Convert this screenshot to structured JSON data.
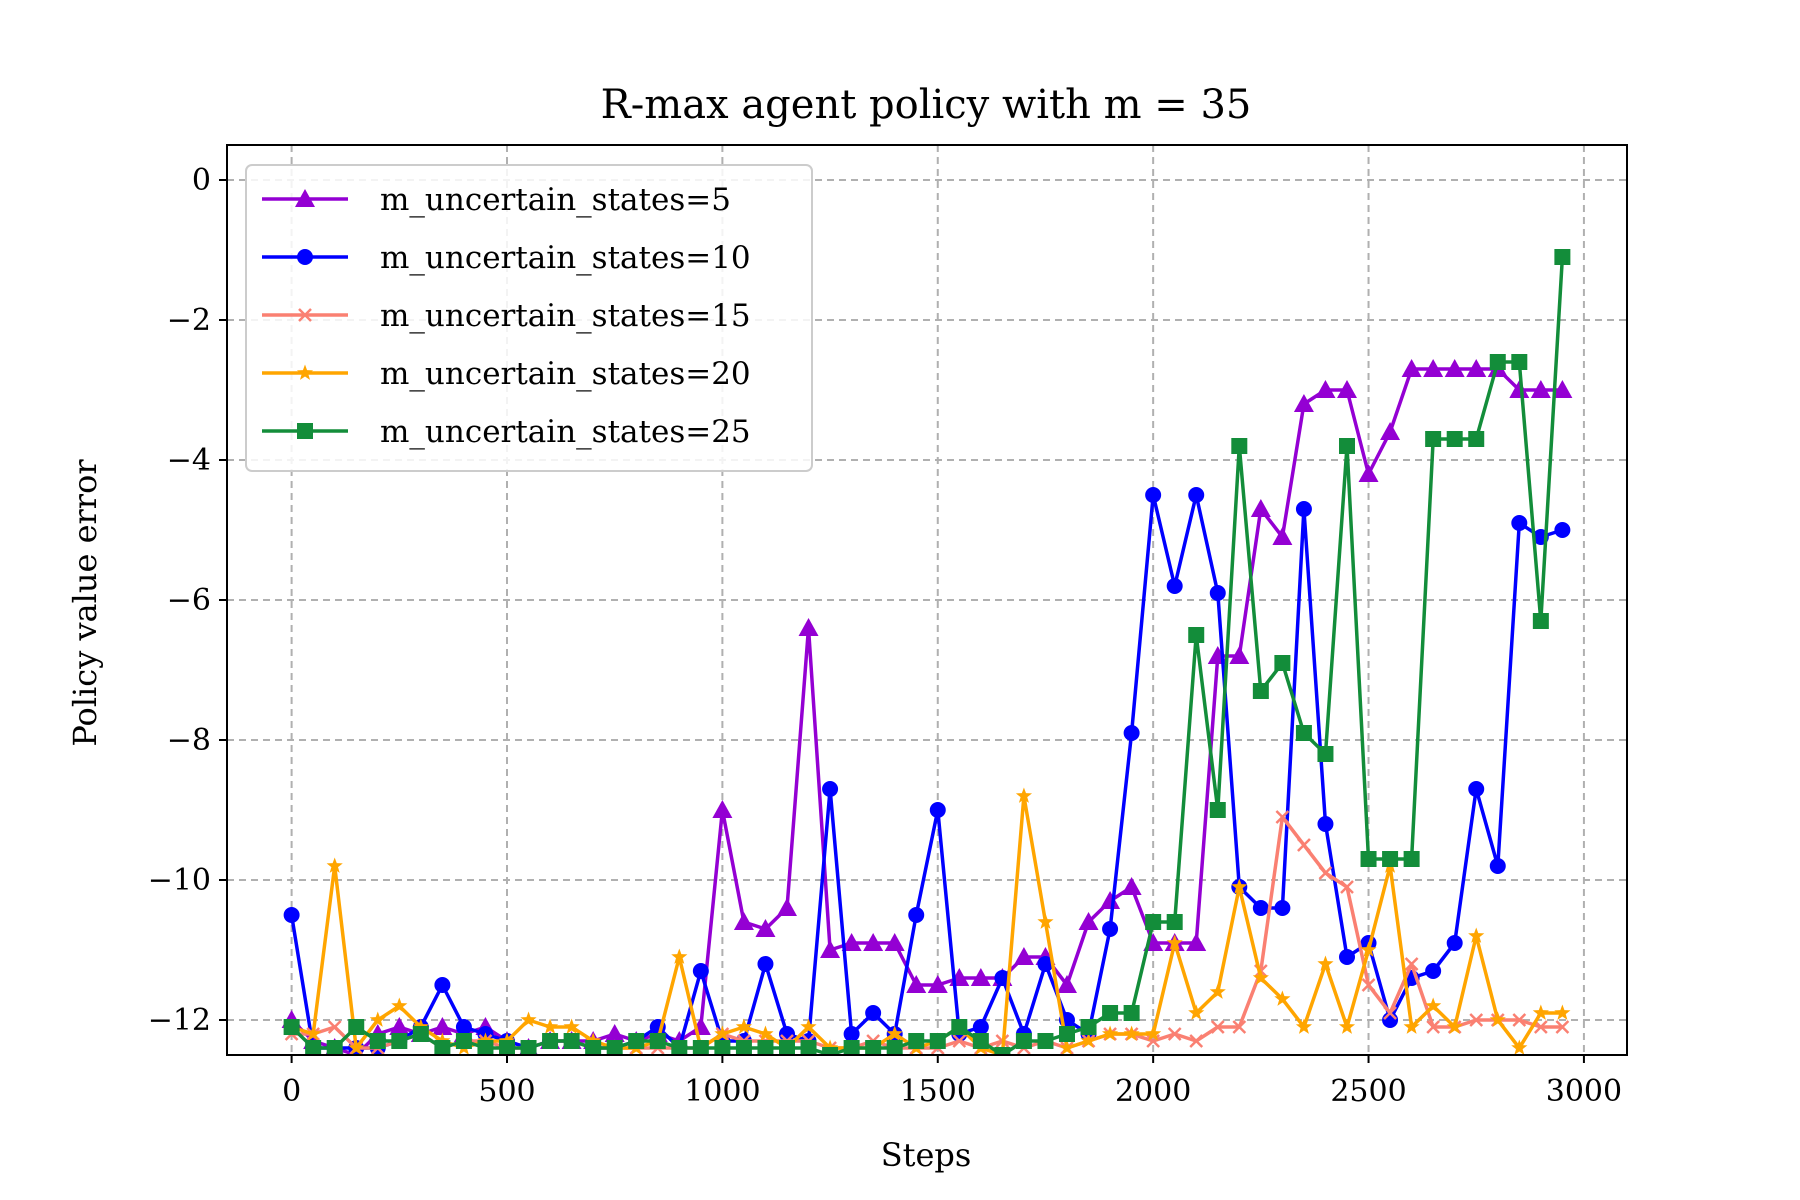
{
  "chart_data": {
    "type": "line",
    "title": "R-max agent policy with m = 35",
    "xlabel": "Steps",
    "ylabel": "Policy value error",
    "xlim": [
      -150,
      3100
    ],
    "ylim": [
      -12.5,
      0.5
    ],
    "xticks": [
      0,
      500,
      1000,
      1500,
      2000,
      2500,
      3000
    ],
    "yticks": [
      0,
      -2,
      -4,
      -6,
      -8,
      -10,
      -12
    ],
    "xtick_labels": [
      "0",
      "500",
      "1000",
      "1500",
      "2000",
      "2500",
      "3000"
    ],
    "ytick_labels": [
      "0",
      "−2",
      "−4",
      "−6",
      "−8",
      "−10",
      "−12"
    ],
    "grid": true,
    "legend_position": "upper-left",
    "x": [
      0,
      50,
      100,
      150,
      200,
      250,
      300,
      350,
      400,
      450,
      500,
      550,
      600,
      650,
      700,
      750,
      800,
      850,
      900,
      950,
      1000,
      1050,
      1100,
      1150,
      1200,
      1250,
      1300,
      1350,
      1400,
      1450,
      1500,
      1550,
      1600,
      1650,
      1700,
      1750,
      1800,
      1850,
      1900,
      1950,
      2000,
      2050,
      2100,
      2150,
      2200,
      2250,
      2300,
      2350,
      2400,
      2450,
      2500,
      2550,
      2600,
      2650,
      2700,
      2750,
      2800,
      2850,
      2900,
      2950
    ],
    "series": [
      {
        "name": "m_uncertain_states=5",
        "color": "#9400d3",
        "marker": "triangle",
        "values": [
          -12.0,
          -12.3,
          -12.4,
          -12.5,
          -12.2,
          -12.1,
          -12.2,
          -12.1,
          -12.2,
          -12.1,
          -12.3,
          -12.4,
          -12.3,
          -12.3,
          -12.3,
          -12.2,
          -12.3,
          -12.2,
          -12.3,
          -12.1,
          -9.0,
          -10.6,
          -10.7,
          -10.4,
          -6.4,
          -11.0,
          -10.9,
          -10.9,
          -10.9,
          -11.5,
          -11.5,
          -11.4,
          -11.4,
          -11.4,
          -11.1,
          -11.1,
          -11.5,
          -10.6,
          -10.3,
          -10.1,
          -10.9,
          -10.9,
          -10.9,
          -6.8,
          -6.8,
          -4.7,
          -5.1,
          -3.2,
          -3.0,
          -3.0,
          -4.2,
          -3.6,
          -2.7,
          -2.7,
          -2.7,
          -2.7,
          -2.7,
          -3.0,
          -3.0,
          -3.0
        ]
      },
      {
        "name": "m_uncertain_states=10",
        "color": "#0000ff",
        "marker": "circle",
        "values": [
          -10.5,
          -12.4,
          -12.4,
          -12.4,
          -12.4,
          -12.3,
          -12.1,
          -11.5,
          -12.1,
          -12.2,
          -12.3,
          -12.4,
          -12.3,
          -12.3,
          -12.4,
          -12.4,
          -12.3,
          -12.1,
          -12.4,
          -11.3,
          -12.3,
          -12.3,
          -11.2,
          -12.2,
          -12.3,
          -8.7,
          -12.2,
          -11.9,
          -12.2,
          -10.5,
          -9.0,
          -12.2,
          -12.1,
          -11.4,
          -12.2,
          -11.2,
          -12.0,
          -12.2,
          -10.7,
          -7.9,
          -4.5,
          -5.8,
          -4.5,
          -5.9,
          -10.1,
          -10.4,
          -10.4,
          -4.7,
          -9.2,
          -11.1,
          -10.9,
          -12.0,
          -11.4,
          -11.3,
          -10.9,
          -8.7,
          -9.8,
          -4.9,
          -5.1,
          -5.0
        ]
      },
      {
        "name": "m_uncertain_states=15",
        "color": "#fa8072",
        "marker": "x",
        "values": [
          -12.2,
          -12.2,
          -12.1,
          -12.4,
          -12.4,
          -12.3,
          -12.2,
          -12.4,
          -12.3,
          -12.3,
          -12.4,
          -12.4,
          -12.3,
          -12.3,
          -12.4,
          -12.4,
          -12.4,
          -12.4,
          -12.4,
          -12.4,
          -12.2,
          -12.3,
          -12.3,
          -12.3,
          -12.3,
          -12.4,
          -12.4,
          -12.3,
          -12.4,
          -12.4,
          -12.4,
          -12.3,
          -12.4,
          -12.3,
          -12.4,
          -12.3,
          -12.4,
          -12.3,
          -12.2,
          -12.2,
          -12.3,
          -12.2,
          -12.3,
          -12.1,
          -12.1,
          -11.3,
          -9.1,
          -9.5,
          -9.9,
          -10.1,
          -11.5,
          -11.9,
          -11.2,
          -12.1,
          -12.1,
          -12.0,
          -12.0,
          -12.0,
          -12.1,
          -12.1
        ]
      },
      {
        "name": "m_uncertain_states=20",
        "color": "#ffa500",
        "marker": "star",
        "values": [
          -12.1,
          -12.2,
          -9.8,
          -12.4,
          -12.0,
          -11.8,
          -12.1,
          -12.3,
          -12.4,
          -12.3,
          -12.3,
          -12.0,
          -12.1,
          -12.1,
          -12.3,
          -12.4,
          -12.4,
          -12.3,
          -11.1,
          -12.4,
          -12.2,
          -12.1,
          -12.2,
          -12.4,
          -12.1,
          -12.4,
          -12.4,
          -12.4,
          -12.2,
          -12.4,
          -12.3,
          -12.1,
          -12.4,
          -12.5,
          -8.8,
          -10.6,
          -12.4,
          -12.3,
          -12.2,
          -12.2,
          -12.2,
          -10.9,
          -11.9,
          -11.6,
          -10.1,
          -11.4,
          -11.7,
          -12.1,
          -11.2,
          -12.1,
          -11.0,
          -9.8,
          -12.1,
          -11.8,
          -12.1,
          -10.8,
          -12.0,
          -12.4,
          -11.9,
          -11.9
        ]
      },
      {
        "name": "m_uncertain_states=25",
        "color": "#138d3a",
        "marker": "square",
        "values": [
          -12.1,
          -12.4,
          -12.4,
          -12.1,
          -12.3,
          -12.3,
          -12.2,
          -12.4,
          -12.3,
          -12.4,
          -12.4,
          -12.4,
          -12.3,
          -12.3,
          -12.4,
          -12.4,
          -12.3,
          -12.3,
          -12.4,
          -12.4,
          -12.4,
          -12.4,
          -12.4,
          -12.4,
          -12.4,
          -12.5,
          -12.4,
          -12.4,
          -12.4,
          -12.3,
          -12.3,
          -12.1,
          -12.3,
          -12.5,
          -12.3,
          -12.3,
          -12.2,
          -12.1,
          -11.9,
          -11.9,
          -10.6,
          -10.6,
          -6.5,
          -9.0,
          -3.8,
          -7.3,
          -6.9,
          -7.9,
          -8.2,
          -3.8,
          -9.7,
          -9.7,
          -9.7,
          -3.7,
          -3.7,
          -3.7,
          -2.6,
          -2.6,
          -6.3,
          -1.1
        ]
      }
    ]
  }
}
